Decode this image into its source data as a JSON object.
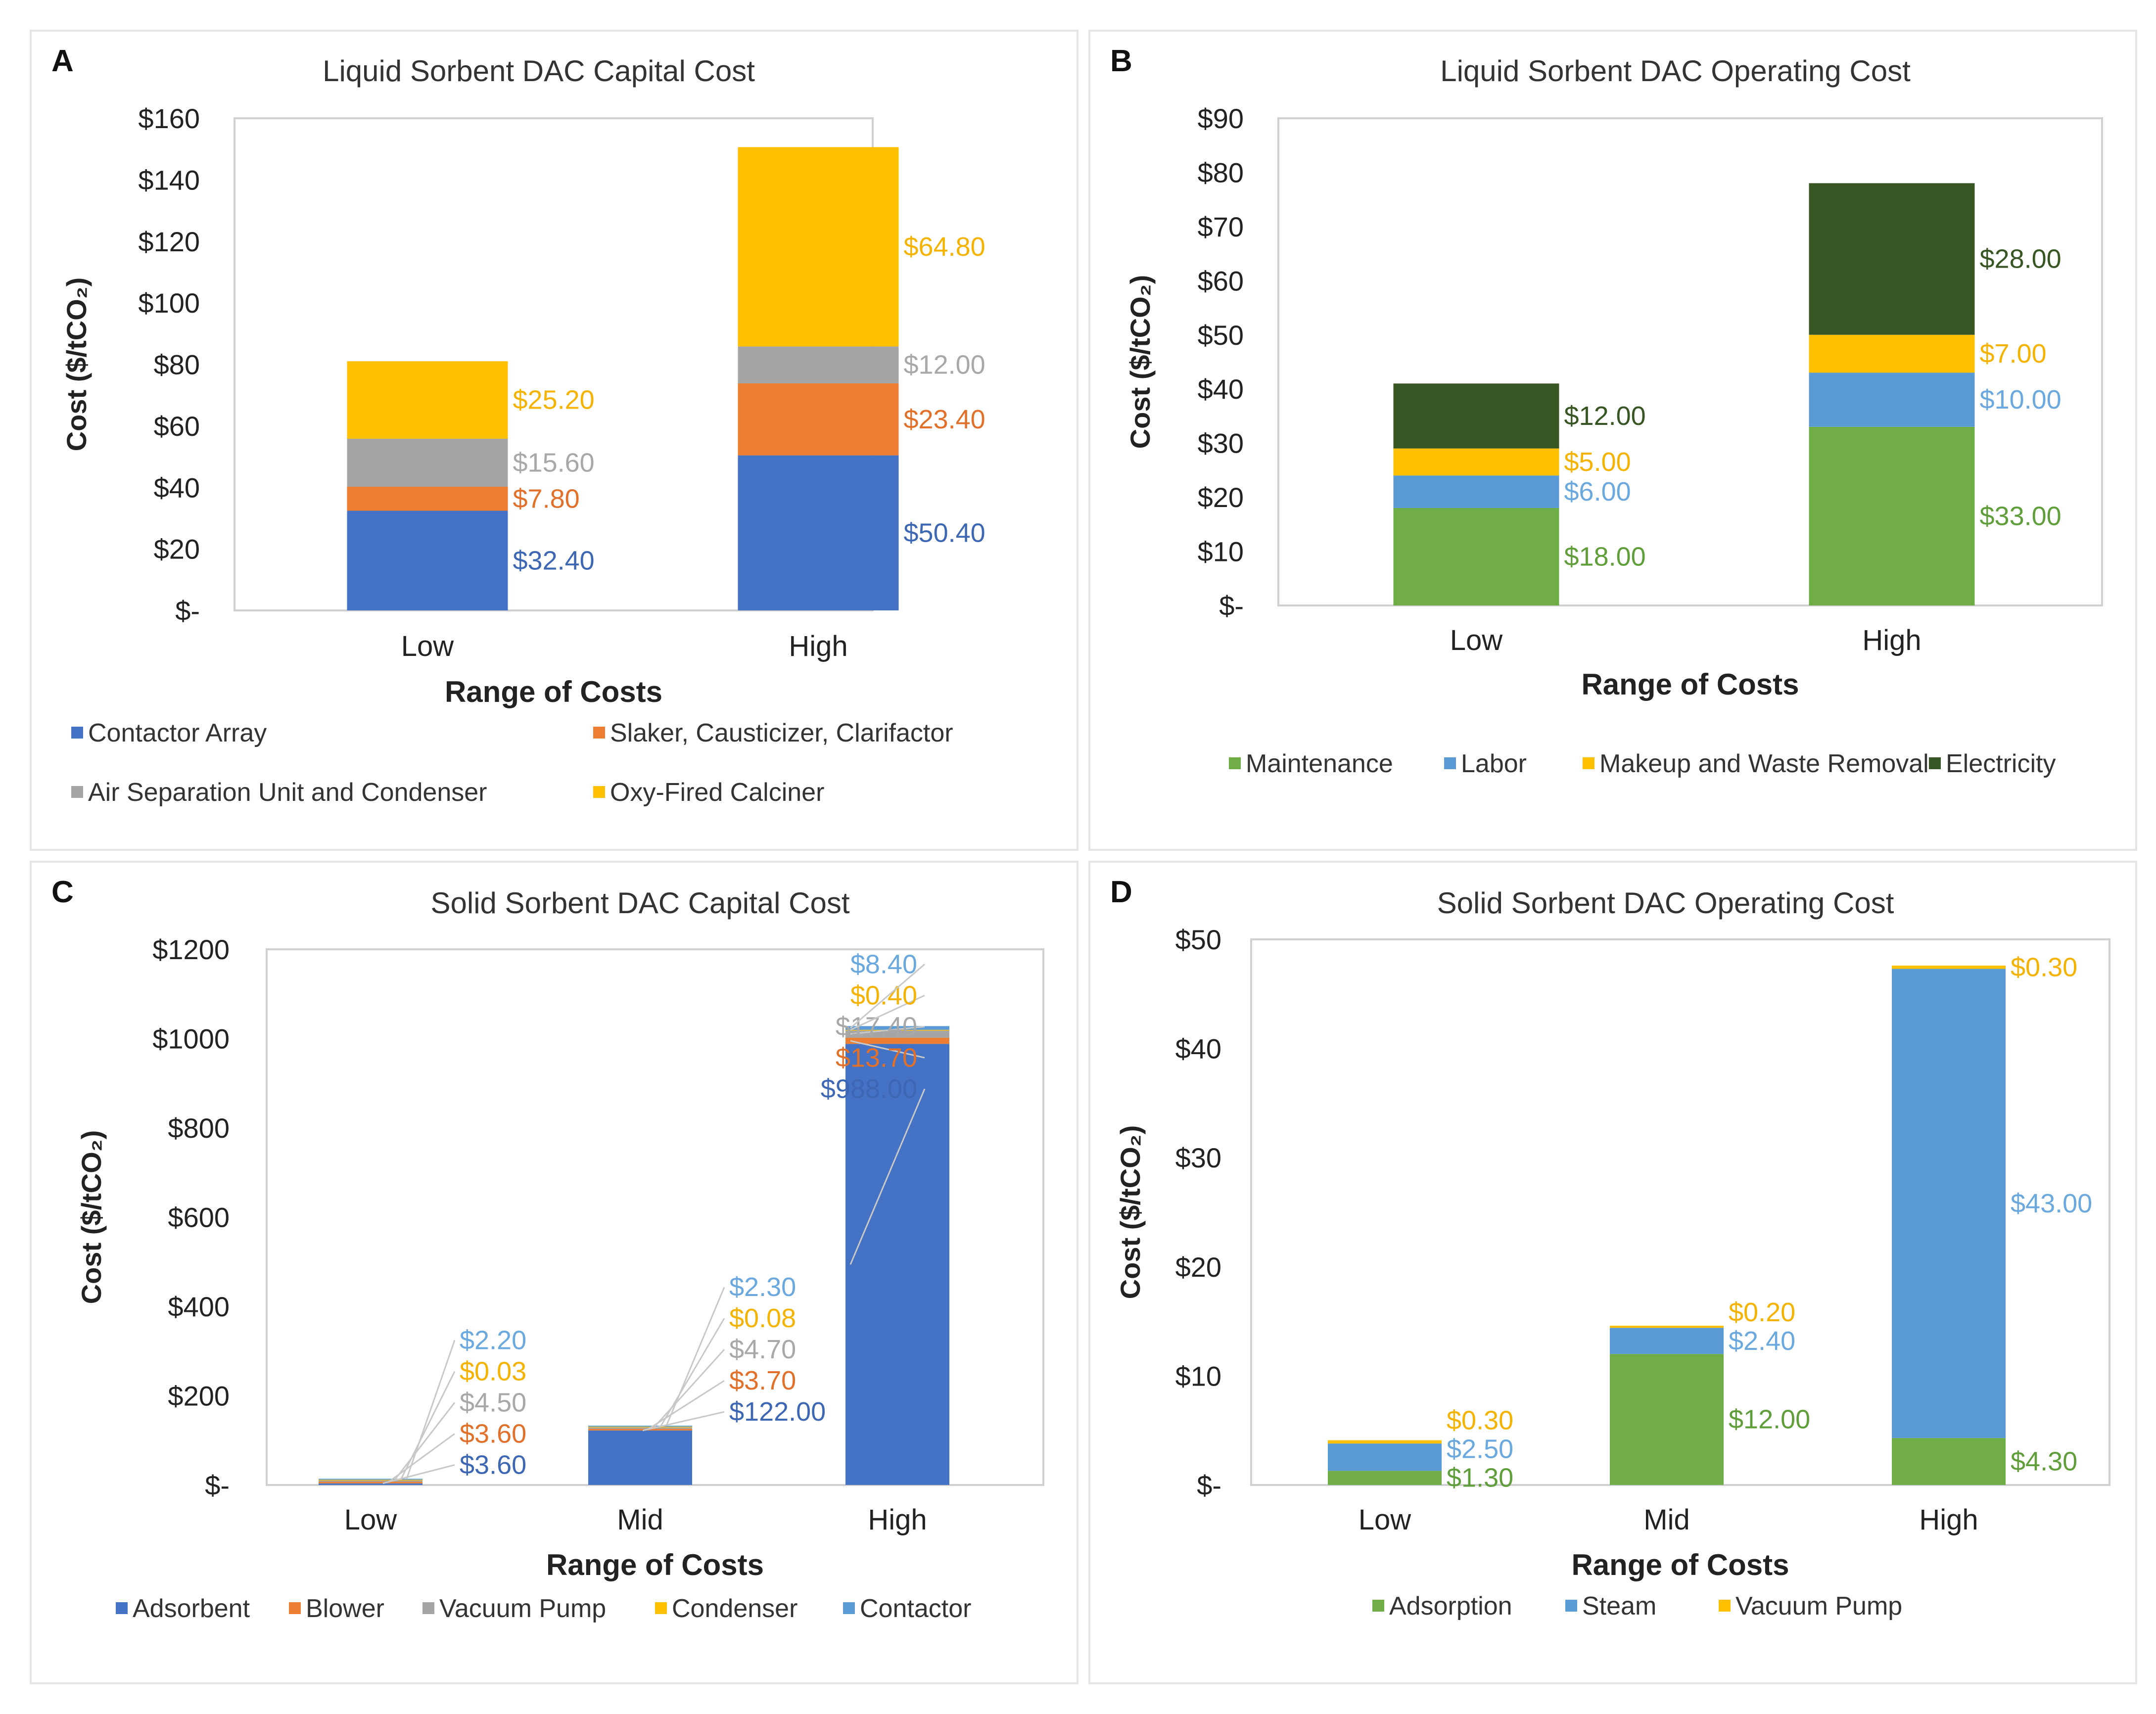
{
  "chart_data": [
    {
      "panel": "A",
      "type": "bar",
      "stacked": true,
      "title": "Liquid Sorbent DAC Capital Cost",
      "xlabel": "Range of Costs",
      "ylabel": "Cost ($/tCO₂)",
      "ylim": [
        0,
        160
      ],
      "yticks": [
        0,
        20,
        40,
        60,
        80,
        100,
        120,
        140,
        160
      ],
      "ytick_labels": [
        "$-",
        "$20",
        "$40",
        "$60",
        "$80",
        "$100",
        "$120",
        "$140",
        "$160"
      ],
      "categories": [
        "Low",
        "High"
      ],
      "series": [
        {
          "name": "Contactor Array",
          "color": "#4472C4",
          "values": [
            32.4,
            50.4
          ],
          "labels": [
            "$32.40",
            "$50.40"
          ]
        },
        {
          "name": "Slaker, Causticizer, Clarifactor",
          "color": "#ED7D31",
          "values": [
            7.8,
            23.4
          ],
          "labels": [
            "$7.80",
            "$23.40"
          ]
        },
        {
          "name": "Air Separation Unit and Condenser",
          "color": "#A5A5A5",
          "values": [
            15.6,
            12.0
          ],
          "labels": [
            "$15.60",
            "$12.00"
          ]
        },
        {
          "name": "Oxy-Fired Calciner",
          "color": "#FFC000",
          "values": [
            25.2,
            64.8
          ],
          "labels": [
            "$25.20",
            "$64.80"
          ]
        }
      ]
    },
    {
      "panel": "B",
      "type": "bar",
      "stacked": true,
      "title": "Liquid Sorbent DAC Operating Cost",
      "xlabel": "Range of Costs",
      "ylabel": "Cost ($/tCO₂)",
      "ylim": [
        0,
        90
      ],
      "yticks": [
        0,
        10,
        20,
        30,
        40,
        50,
        60,
        70,
        80,
        90
      ],
      "ytick_labels": [
        "$-",
        "$10",
        "$20",
        "$30",
        "$40",
        "$50",
        "$60",
        "$70",
        "$80",
        "$90"
      ],
      "categories": [
        "Low",
        "High"
      ],
      "series": [
        {
          "name": "Maintenance",
          "color": "#70AD47",
          "values": [
            18,
            33
          ],
          "labels": [
            "$18.00",
            "$33.00"
          ]
        },
        {
          "name": "Labor",
          "color": "#5B9BD5",
          "values": [
            6,
            10
          ],
          "labels": [
            "$6.00",
            "$10.00"
          ]
        },
        {
          "name": "Makeup and Waste Removal",
          "color": "#FFC000",
          "values": [
            5,
            7
          ],
          "labels": [
            "$5.00",
            "$7.00"
          ]
        },
        {
          "name": "Electricity",
          "color": "#375623",
          "values": [
            12,
            28
          ],
          "labels": [
            "$12.00",
            "$28.00"
          ]
        }
      ]
    },
    {
      "panel": "C",
      "type": "bar",
      "stacked": true,
      "title": "Solid Sorbent DAC Capital Cost",
      "xlabel": "Range of Costs",
      "ylabel": "Cost ($/tCO₂)",
      "ylim": [
        0,
        1200
      ],
      "yticks": [
        0,
        200,
        400,
        600,
        800,
        1000,
        1200
      ],
      "ytick_labels": [
        "$-",
        "$200",
        "$400",
        "$600",
        "$800",
        "$1000",
        "$1200"
      ],
      "categories": [
        "Low",
        "Mid",
        "High"
      ],
      "series": [
        {
          "name": "Adsorbent",
          "color": "#4472C4",
          "values": [
            3.6,
            122,
            988
          ],
          "labels": [
            "$3.60",
            "$122.00",
            "$988.00"
          ]
        },
        {
          "name": "Blower",
          "color": "#ED7D31",
          "values": [
            3.6,
            3.7,
            13.7
          ],
          "labels": [
            "$3.60",
            "$3.70",
            "$13.70"
          ]
        },
        {
          "name": "Vacuum Pump",
          "color": "#A5A5A5",
          "values": [
            4.5,
            4.7,
            17.4
          ],
          "labels": [
            "$4.50",
            "$4.70",
            "$17.40"
          ]
        },
        {
          "name": "Condenser",
          "color": "#FFC000",
          "values": [
            0.03,
            0.08,
            0.4
          ],
          "labels": [
            "$0.03",
            "$0.08",
            "$0.40"
          ]
        },
        {
          "name": "Contactor",
          "color": "#5B9BD5",
          "values": [
            2.2,
            2.3,
            8.4
          ],
          "labels": [
            "$2.20",
            "$2.30",
            "$8.40"
          ]
        }
      ]
    },
    {
      "panel": "D",
      "type": "bar",
      "stacked": true,
      "title": "Solid Sorbent DAC Operating Cost",
      "xlabel": "Range of Costs",
      "ylabel": "Cost ($/tCO₂)",
      "ylim": [
        0,
        50
      ],
      "yticks": [
        0,
        10,
        20,
        30,
        40,
        50
      ],
      "ytick_labels": [
        "$-",
        "$10",
        "$20",
        "$30",
        "$40",
        "$50"
      ],
      "categories": [
        "Low",
        "Mid",
        "High"
      ],
      "series": [
        {
          "name": "Adsorption",
          "color": "#70AD47",
          "values": [
            1.3,
            12,
            4.3
          ],
          "labels": [
            "$1.30",
            "$12.00",
            "$4.30"
          ]
        },
        {
          "name": "Steam",
          "color": "#5B9BD5",
          "values": [
            2.5,
            2.4,
            43
          ],
          "labels": [
            "$2.50",
            "$2.40",
            "$43.00"
          ]
        },
        {
          "name": "Vacuum Pump",
          "color": "#FFC000",
          "values": [
            0.3,
            0.2,
            0.3
          ],
          "labels": [
            "$0.30",
            "$0.20",
            "$0.30"
          ]
        }
      ]
    }
  ]
}
